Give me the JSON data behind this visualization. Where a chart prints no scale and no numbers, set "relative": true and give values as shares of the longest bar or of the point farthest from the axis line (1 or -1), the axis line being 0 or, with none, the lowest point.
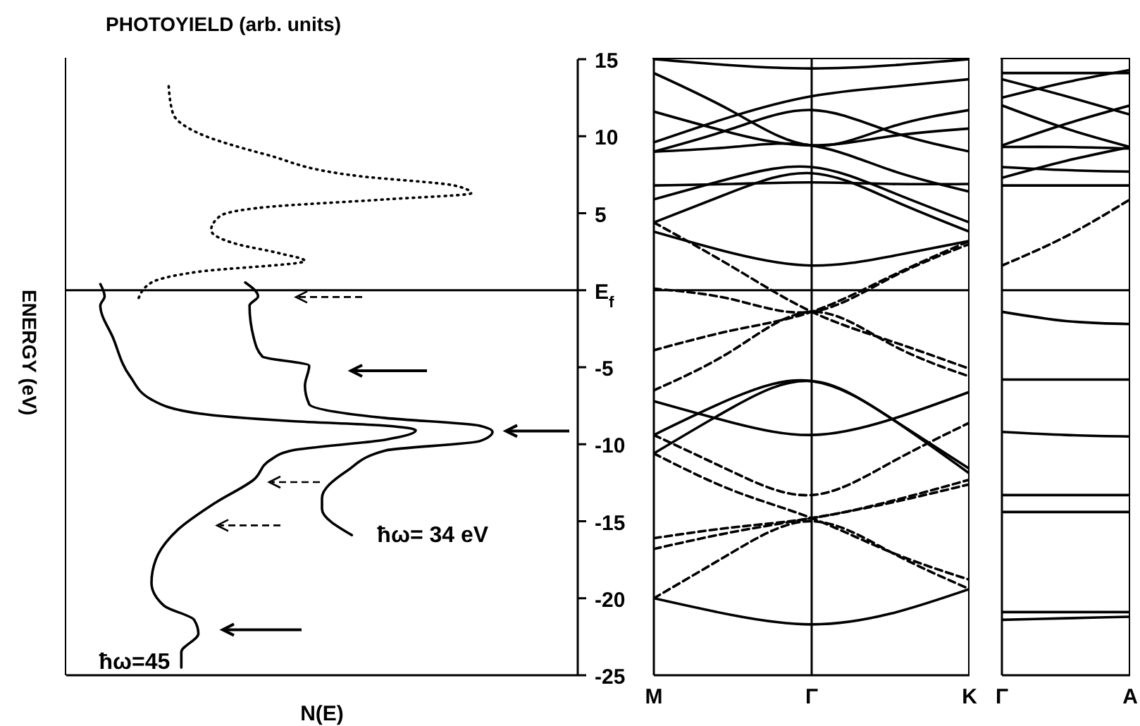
{
  "chart_data": [
    {
      "type": "line",
      "title": "PHOTOYIELD (arb. units)",
      "ylabel": "ENERGY (eV)",
      "xlabel": "N(E)",
      "orientation": "horizontal",
      "relative": true,
      "color": "#000000",
      "ylim": [
        -25,
        15
      ],
      "yticks": [
        15,
        10,
        5,
        {
          "value": 0,
          "label": "E$_{f}$"
        },
        -5,
        -10,
        -15,
        -20,
        -25
      ],
      "ref_lines": [
        {
          "axis": "y",
          "value": 0
        }
      ],
      "series": [
        {
          "line_style": "dotted",
          "x": [
            -0.5,
            0.5,
            1.2,
            1.9,
            2.4,
            3.0,
            3.9,
            4.8,
            5.4,
            5.9,
            6.3,
            6.8,
            7.4,
            8.8,
            10.2,
            11.5,
            13.4
          ],
          "values": [
            0.17,
            0.2,
            0.31,
            0.56,
            0.5,
            0.4,
            0.34,
            0.36,
            0.47,
            0.75,
            0.95,
            0.91,
            0.69,
            0.47,
            0.31,
            0.25,
            0.24
          ]
        },
        {
          "name": "ħω= 34 eV",
          "line_style": "solid",
          "x": [
            0.5,
            -0.4,
            -1.0,
            -3.1,
            -4.3,
            -4.9,
            -6.2,
            -7.4,
            -8.3,
            -8.8,
            -9.2,
            -9.8,
            -10.4,
            -11.7,
            -13.5,
            -14.2,
            -15.9
          ],
          "values": [
            0.42,
            0.45,
            0.43,
            0.44,
            0.46,
            0.57,
            0.56,
            0.57,
            0.75,
            0.97,
            1.0,
            0.97,
            0.75,
            0.66,
            0.6,
            0.6,
            0.67
          ]
        },
        {
          "name": "ħω=45",
          "line_style": "solid",
          "x": [
            0.4,
            -0.4,
            -1.0,
            -3.1,
            -5.6,
            -7.1,
            -8.0,
            -8.5,
            -8.8,
            -9.1,
            -9.7,
            -10.4,
            -11.0,
            -12.3,
            -13.8,
            -15.6,
            -17.5,
            -19.0,
            -20.5,
            -21.4,
            -22.3,
            -23.5,
            -24.5
          ],
          "values": [
            0.08,
            0.09,
            0.08,
            0.11,
            0.15,
            0.2,
            0.31,
            0.53,
            0.75,
            0.82,
            0.75,
            0.53,
            0.48,
            0.44,
            0.35,
            0.26,
            0.21,
            0.2,
            0.23,
            0.3,
            0.31,
            0.27,
            0.27
          ]
        }
      ]
    },
    {
      "type": "line",
      "color": "#000000",
      "tick_labels": "x",
      "categories": [
        "M",
        null,
        "Γ",
        null,
        "K"
      ],
      "ylim": [
        -25,
        15
      ],
      "yticks": [
        15,
        10,
        5,
        0,
        -5,
        -10,
        -15,
        -20,
        -25
      ],
      "ref_lines": [
        {
          "axis": "y",
          "value": 0
        },
        {
          "axis": "x",
          "value": "Γ"
        }
      ],
      "series": [
        {
          "line_style": "solid",
          "values": [
            -20.0,
            -21.1,
            -21.7,
            -21.0,
            -19.4
          ]
        },
        {
          "line_style": "solid",
          "values": [
            -7.2,
            -8.6,
            -9.4,
            -8.4,
            -6.6
          ]
        },
        {
          "line_style": "solid",
          "values": [
            -9.4,
            -7.0,
            -5.9,
            -8.3,
            -11.9
          ]
        },
        {
          "line_style": "solid",
          "values": [
            -10.6,
            -7.6,
            -5.9,
            -8.3,
            -11.6
          ]
        },
        {
          "line_style": "dashed",
          "values": [
            -20.0,
            -17.0,
            -15.0,
            -17.0,
            -19.4
          ]
        },
        {
          "line_style": "dashed",
          "values": [
            -16.1,
            -15.4,
            -14.8,
            -13.7,
            -12.3
          ]
        },
        {
          "line_style": "dashed",
          "values": [
            -16.8,
            -15.7,
            -14.8,
            -13.8,
            -12.6
          ]
        },
        {
          "line_style": "dashed",
          "values": [
            -9.4,
            -11.8,
            -13.3,
            -11.2,
            -8.6
          ]
        },
        {
          "line_style": "dashed",
          "values": [
            -10.6,
            -13.0,
            -14.8,
            -17.0,
            -18.8
          ]
        },
        {
          "line_style": "dashed",
          "values": [
            -3.9,
            -2.6,
            -1.4,
            0.9,
            3.2
          ]
        },
        {
          "line_style": "dashed",
          "values": [
            -6.5,
            -3.9,
            -1.4,
            -3.5,
            -5.6
          ]
        },
        {
          "line_style": "dashed",
          "values": [
            4.4,
            1.5,
            -1.4,
            -3.3,
            -5.1
          ]
        },
        {
          "line_style": "dashed",
          "values": [
            0.1,
            -0.6,
            -1.4,
            0.8,
            3.0
          ]
        },
        {
          "line_style": "solid",
          "values": [
            3.8,
            2.4,
            1.6,
            2.2,
            3.2
          ]
        },
        {
          "line_style": "solid",
          "values": [
            4.4,
            6.4,
            7.6,
            5.9,
            3.8
          ]
        },
        {
          "line_style": "solid",
          "values": [
            5.9,
            7.3,
            8.0,
            6.4,
            4.4
          ]
        },
        {
          "line_style": "solid",
          "values": [
            6.8,
            6.9,
            7.0,
            6.9,
            6.9
          ]
        },
        {
          "line_style": "solid",
          "values": [
            9.0,
            9.3,
            9.4,
            7.8,
            6.4
          ]
        },
        {
          "line_style": "solid",
          "values": [
            9.6,
            11.3,
            12.6,
            13.2,
            13.7
          ]
        },
        {
          "line_style": "solid",
          "values": [
            14.1,
            11.6,
            9.4,
            10.6,
            11.7
          ]
        },
        {
          "line_style": "solid",
          "values": [
            11.6,
            10.2,
            9.4,
            10.0,
            10.5
          ]
        },
        {
          "line_style": "solid",
          "values": [
            9.0,
            10.5,
            11.7,
            10.3,
            9.0
          ]
        },
        {
          "line_style": "solid",
          "values": [
            15.0,
            14.6,
            14.4,
            14.6,
            15.0
          ]
        }
      ]
    },
    {
      "type": "line",
      "color": "#000000",
      "tick_labels": "x",
      "categories": [
        "Γ",
        null,
        "A"
      ],
      "ylim": [
        -25,
        15
      ],
      "yticks": [
        15,
        10,
        5,
        0,
        -5,
        -10,
        -15,
        -20,
        -25
      ],
      "ref_lines": [
        {
          "axis": "y",
          "value": 0
        }
      ],
      "series": [
        {
          "line_style": "solid",
          "values": [
            14.1,
            14.1,
            14.1
          ]
        },
        {
          "line_style": "solid",
          "values": [
            13.7,
            12.6,
            11.4
          ]
        },
        {
          "line_style": "solid",
          "values": [
            12.5,
            13.5,
            14.3
          ]
        },
        {
          "line_style": "solid",
          "values": [
            12.0,
            10.5,
            9.3
          ]
        },
        {
          "line_style": "solid",
          "values": [
            9.4,
            10.8,
            12.0
          ]
        },
        {
          "line_style": "solid",
          "values": [
            9.3,
            9.3,
            9.2
          ]
        },
        {
          "line_style": "solid",
          "values": [
            8.0,
            7.8,
            7.7
          ]
        },
        {
          "line_style": "solid",
          "values": [
            7.3,
            8.4,
            9.3
          ]
        },
        {
          "line_style": "solid",
          "values": [
            6.8,
            6.8,
            6.8
          ]
        },
        {
          "line_style": "dashed",
          "values": [
            1.6,
            3.5,
            5.9
          ]
        },
        {
          "line_style": "solid",
          "values": [
            -1.4,
            -2.0,
            -2.2
          ]
        },
        {
          "line_style": "solid",
          "values": [
            -5.8,
            -5.8,
            -5.8
          ]
        },
        {
          "line_style": "solid",
          "values": [
            -9.2,
            -9.4,
            -9.5
          ]
        },
        {
          "line_style": "solid",
          "values": [
            -13.3,
            -13.3,
            -13.3
          ]
        },
        {
          "line_style": "solid",
          "values": [
            -14.4,
            -14.4,
            -14.4
          ]
        },
        {
          "line_style": "solid",
          "values": [
            -20.9,
            -20.9,
            -20.9
          ]
        },
        {
          "line_style": "solid",
          "values": [
            -21.4,
            -21.3,
            -21.2
          ]
        }
      ]
    }
  ]
}
